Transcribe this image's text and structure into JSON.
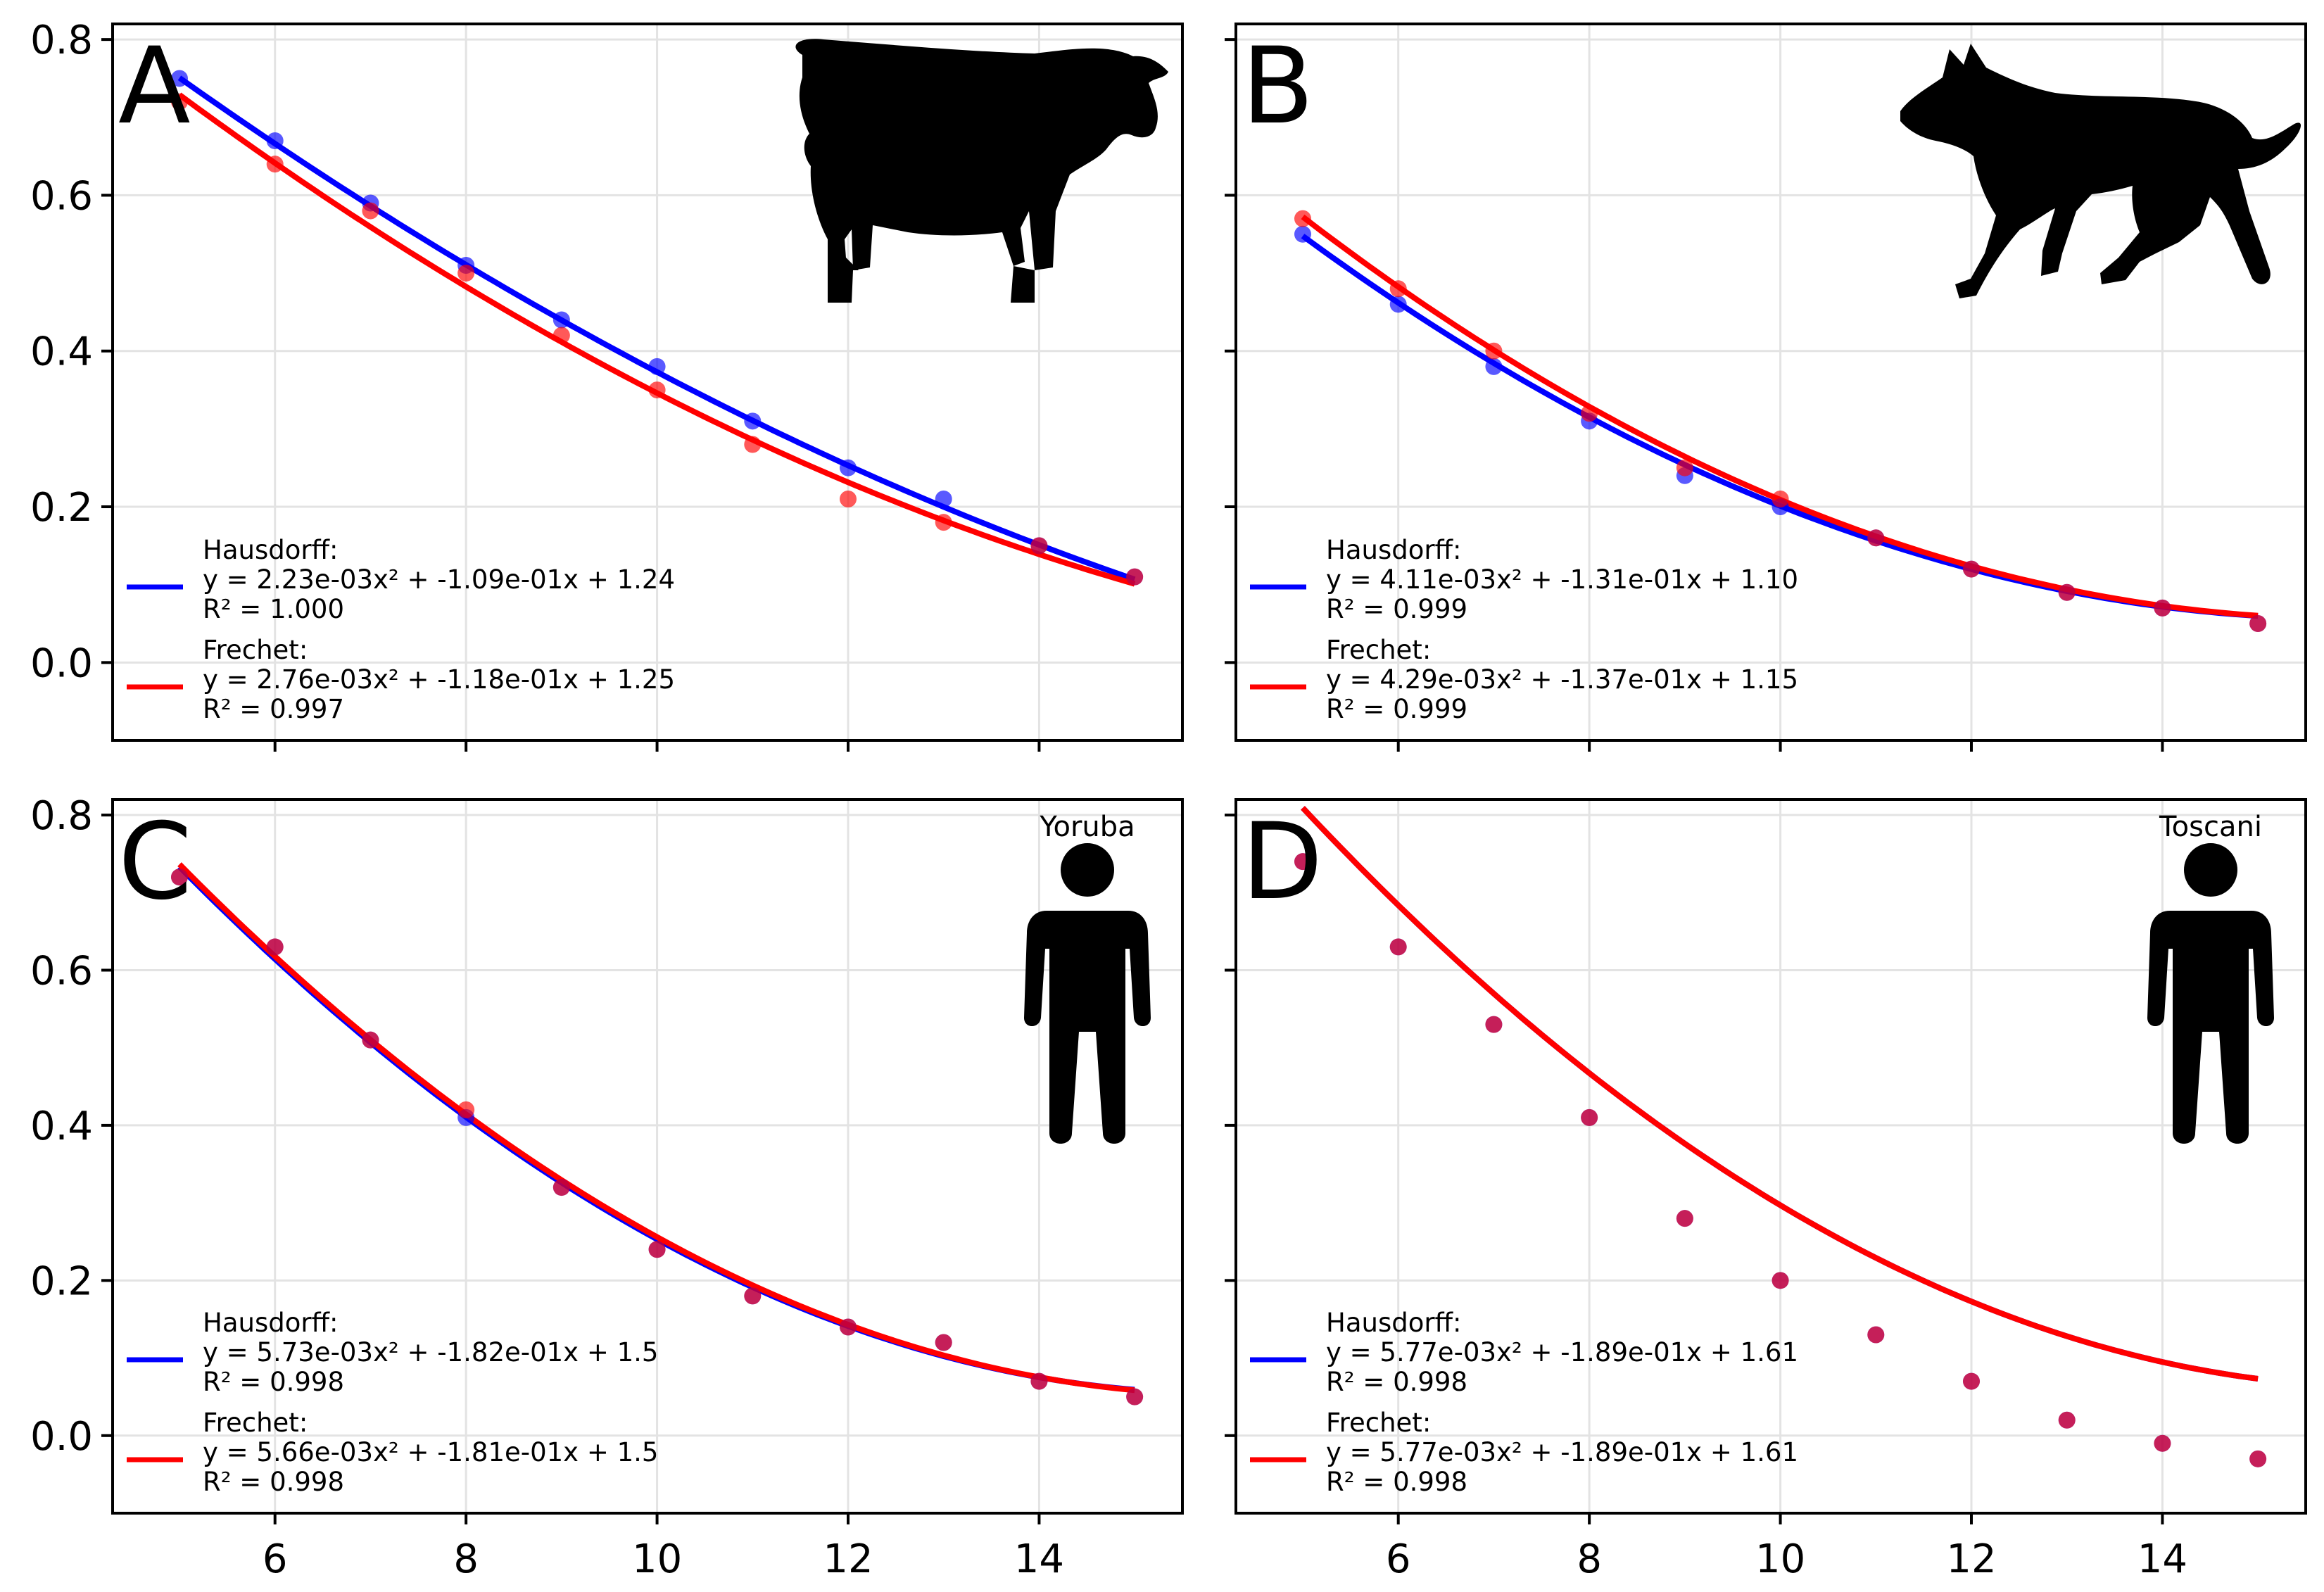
{
  "chart_data": [
    {
      "type": "scatter",
      "panel": "A",
      "icon": "cow-icon",
      "icon_label": "",
      "xlim": [
        4.3,
        15.5
      ],
      "ylim": [
        -0.1,
        0.82
      ],
      "xticks": [
        6,
        8,
        10,
        12,
        14
      ],
      "yticks": [
        0.0,
        0.2,
        0.4,
        0.6,
        0.8
      ],
      "show_xtick_labels": false,
      "show_ytick_labels": true,
      "grid": true,
      "legend_location": "lower-left",
      "series": [
        {
          "name": "Hausdorff",
          "color": "#0000ff",
          "x": [
            5,
            6,
            7,
            8,
            9,
            10,
            11,
            12,
            13,
            14,
            15
          ],
          "y": [
            0.75,
            0.67,
            0.59,
            0.51,
            0.44,
            0.38,
            0.31,
            0.25,
            0.21,
            0.15,
            0.11
          ],
          "fit": [
            0.00223,
            -0.109,
            1.24
          ],
          "equation": "y = 2.23e-03x² + -1.09e-01x + 1.24",
          "r2": "R² = 1.000"
        },
        {
          "name": "Frechet",
          "color": "#ff0000",
          "x": [
            5,
            6,
            7,
            8,
            9,
            10,
            11,
            12,
            13,
            14,
            15
          ],
          "y": [
            0.72,
            0.64,
            0.58,
            0.5,
            0.42,
            0.35,
            0.28,
            0.21,
            0.18,
            0.15,
            0.11
          ],
          "fit": [
            0.00276,
            -0.118,
            1.25
          ],
          "equation": "y = 2.76e-03x² + -1.18e-01x + 1.25",
          "r2": "R² = 0.997"
        }
      ]
    },
    {
      "type": "scatter",
      "panel": "B",
      "icon": "wolf-icon",
      "icon_label": "",
      "xlim": [
        4.3,
        15.5
      ],
      "ylim": [
        -0.1,
        0.82
      ],
      "xticks": [
        6,
        8,
        10,
        12,
        14
      ],
      "yticks": [
        0.0,
        0.2,
        0.4,
        0.6,
        0.8
      ],
      "show_xtick_labels": false,
      "show_ytick_labels": false,
      "grid": true,
      "legend_location": "lower-left",
      "series": [
        {
          "name": "Hausdorff",
          "color": "#0000ff",
          "x": [
            5,
            6,
            7,
            8,
            9,
            10,
            11,
            12,
            13,
            14,
            15
          ],
          "y": [
            0.55,
            0.46,
            0.38,
            0.31,
            0.24,
            0.2,
            0.16,
            0.12,
            0.09,
            0.07,
            0.05
          ],
          "fit": [
            0.00411,
            -0.131,
            1.1
          ],
          "equation": "y = 4.11e-03x² + -1.31e-01x + 1.10",
          "r2": "R² = 0.999"
        },
        {
          "name": "Frechet",
          "color": "#ff0000",
          "x": [
            5,
            6,
            7,
            8,
            9,
            10,
            11,
            12,
            13,
            14,
            15
          ],
          "y": [
            0.57,
            0.48,
            0.4,
            0.32,
            0.25,
            0.21,
            0.16,
            0.12,
            0.09,
            0.07,
            0.05
          ],
          "fit": [
            0.00429,
            -0.137,
            1.15
          ],
          "equation": "y = 4.29e-03x² + -1.37e-01x + 1.15",
          "r2": "R² = 0.999"
        }
      ]
    },
    {
      "type": "scatter",
      "panel": "C",
      "icon": "person-icon",
      "icon_label": "Yoruba",
      "xlim": [
        4.3,
        15.5
      ],
      "ylim": [
        -0.1,
        0.82
      ],
      "xticks": [
        6,
        8,
        10,
        12,
        14
      ],
      "yticks": [
        0.0,
        0.2,
        0.4,
        0.6,
        0.8
      ],
      "show_xtick_labels": true,
      "show_ytick_labels": true,
      "grid": true,
      "legend_location": "lower-left",
      "series": [
        {
          "name": "Hausdorff",
          "color": "#0000ff",
          "x": [
            5,
            6,
            7,
            8,
            9,
            10,
            11,
            12,
            13,
            14,
            15
          ],
          "y": [
            0.72,
            0.63,
            0.51,
            0.41,
            0.32,
            0.24,
            0.18,
            0.14,
            0.12,
            0.07,
            0.05
          ],
          "fit": [
            0.00573,
            -0.182,
            1.5
          ],
          "equation": "y = 5.73e-03x² + -1.82e-01x + 1.5",
          "r2": "R² = 0.998"
        },
        {
          "name": "Frechet",
          "color": "#ff0000",
          "x": [
            5,
            6,
            7,
            8,
            9,
            10,
            11,
            12,
            13,
            14,
            15
          ],
          "y": [
            0.72,
            0.63,
            0.51,
            0.42,
            0.32,
            0.24,
            0.18,
            0.14,
            0.12,
            0.07,
            0.05
          ],
          "fit": [
            0.00566,
            -0.181,
            1.5
          ],
          "equation": "y = 5.66e-03x² + -1.81e-01x + 1.5",
          "r2": "R² = 0.998"
        }
      ]
    },
    {
      "type": "scatter",
      "panel": "D",
      "icon": "person-icon",
      "icon_label": "Toscani",
      "xlim": [
        4.3,
        15.5
      ],
      "ylim": [
        -0.1,
        0.82
      ],
      "xticks": [
        6,
        8,
        10,
        12,
        14
      ],
      "yticks": [
        0.0,
        0.2,
        0.4,
        0.6,
        0.8
      ],
      "show_xtick_labels": true,
      "show_ytick_labels": false,
      "grid": true,
      "legend_location": "lower-left",
      "series": [
        {
          "name": "Hausdorff",
          "color": "#0000ff",
          "x": [
            5,
            6,
            7,
            8,
            9,
            10,
            11,
            12,
            13,
            14,
            15
          ],
          "y": [
            0.74,
            0.63,
            0.53,
            0.41,
            0.28,
            0.2,
            0.13,
            0.07,
            0.02,
            -0.01,
            -0.03
          ],
          "fit": [
            0.00577,
            -0.189,
            1.61
          ],
          "equation": "y = 5.77e-03x² + -1.89e-01x + 1.61",
          "r2": "R² = 0.998"
        },
        {
          "name": "Frechet",
          "color": "#ff0000",
          "x": [
            5,
            6,
            7,
            8,
            9,
            10,
            11,
            12,
            13,
            14,
            15
          ],
          "y": [
            0.74,
            0.63,
            0.53,
            0.41,
            0.28,
            0.2,
            0.13,
            0.07,
            0.02,
            -0.01,
            -0.03
          ],
          "fit": [
            0.00577,
            -0.189,
            1.61
          ],
          "equation": "y = 5.77e-03x² + -1.89e-01x + 1.61",
          "r2": "R² = 0.998"
        }
      ]
    }
  ]
}
